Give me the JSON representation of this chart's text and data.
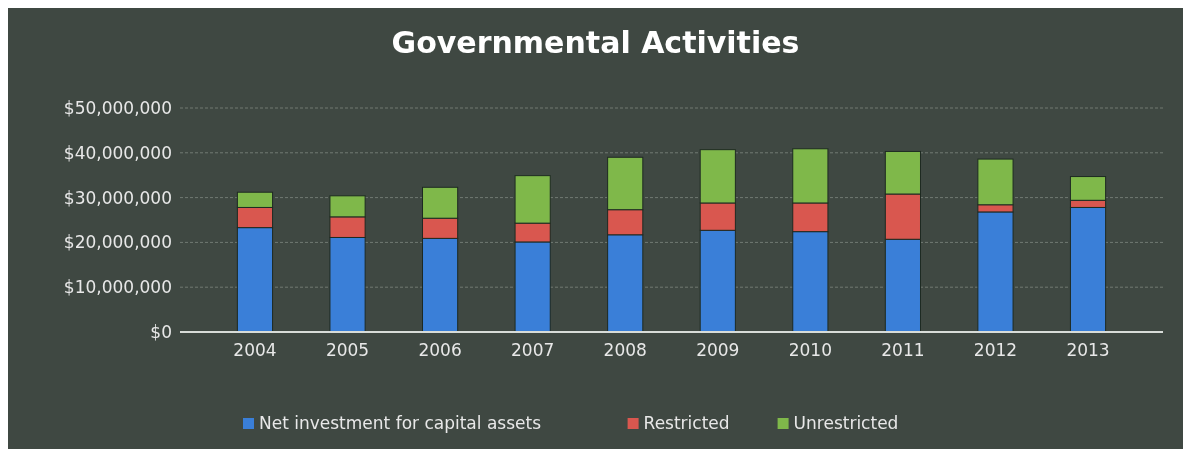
{
  "chart_data": {
    "type": "bar",
    "title": "Governmental Activities",
    "stacked": true,
    "categories": [
      "2004",
      "2005",
      "2006",
      "2007",
      "2008",
      "2009",
      "2010",
      "2011",
      "2012",
      "2013"
    ],
    "series": [
      {
        "name": "Net investment for capital assets",
        "color": "#3a7fd8",
        "values": [
          23300000,
          21100000,
          20900000,
          20100000,
          21700000,
          22700000,
          22400000,
          20700000,
          26800000,
          27800000
        ]
      },
      {
        "name": "Restricted",
        "color": "#d9574f",
        "values": [
          4500000,
          4600000,
          4500000,
          4200000,
          5600000,
          6100000,
          6400000,
          10100000,
          1600000,
          1600000
        ]
      },
      {
        "name": "Unrestricted",
        "color": "#7fb84a",
        "values": [
          3400000,
          4700000,
          6900000,
          10600000,
          11700000,
          11900000,
          12100000,
          9500000,
          10200000,
          5300000
        ]
      }
    ],
    "ylim": [
      0,
      50000000
    ],
    "yticks": [
      {
        "value": 0,
        "label": "$0"
      },
      {
        "value": 10000000,
        "label": "$10,000,000"
      },
      {
        "value": 20000000,
        "label": "$20,000,000"
      },
      {
        "value": 30000000,
        "label": "$30,000,000"
      },
      {
        "value": 40000000,
        "label": "$40,000,000"
      },
      {
        "value": 50000000,
        "label": "$50,000,000"
      }
    ],
    "grid": "y",
    "legend": "bottom"
  }
}
